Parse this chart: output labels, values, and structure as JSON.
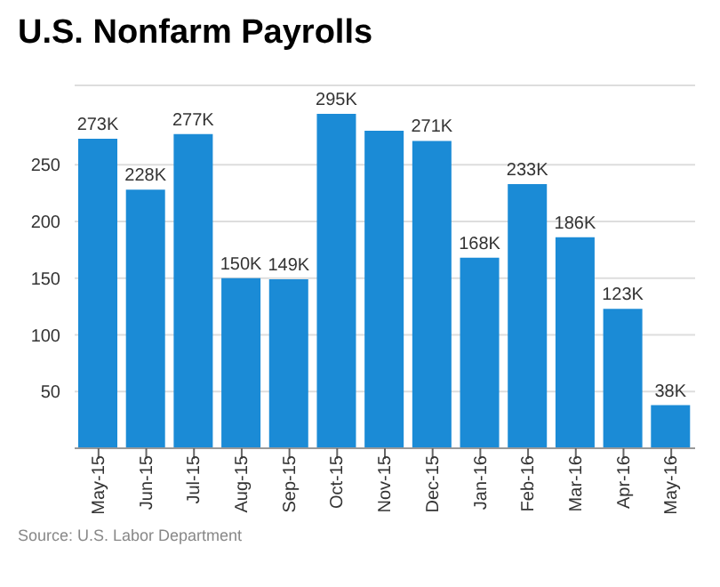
{
  "chart_data": {
    "type": "bar",
    "title": "U.S. Nonfarm Payrolls",
    "categories": [
      "May-15",
      "Jun-15",
      "Jul-15",
      "Aug-15",
      "Sep-15",
      "Oct-15",
      "Nov-15",
      "Dec-15",
      "Jan-16",
      "Feb-16",
      "Mar-16",
      "Apr-16",
      "May-16"
    ],
    "values": [
      273,
      228,
      277,
      150,
      149,
      295,
      280,
      271,
      168,
      233,
      186,
      123,
      38
    ],
    "value_labels": [
      "273K",
      "228K",
      "277K",
      "150K",
      "149K",
      "295K",
      null,
      "271K",
      "168K",
      "233K",
      "186K",
      "123K",
      "38K"
    ],
    "color": "#1b8bd6",
    "ylim": [
      0,
      320
    ],
    "yticks": [
      50,
      100,
      150,
      200,
      250
    ],
    "grid": "y",
    "annotations": [
      "Source: U.S. Labor Department"
    ]
  }
}
